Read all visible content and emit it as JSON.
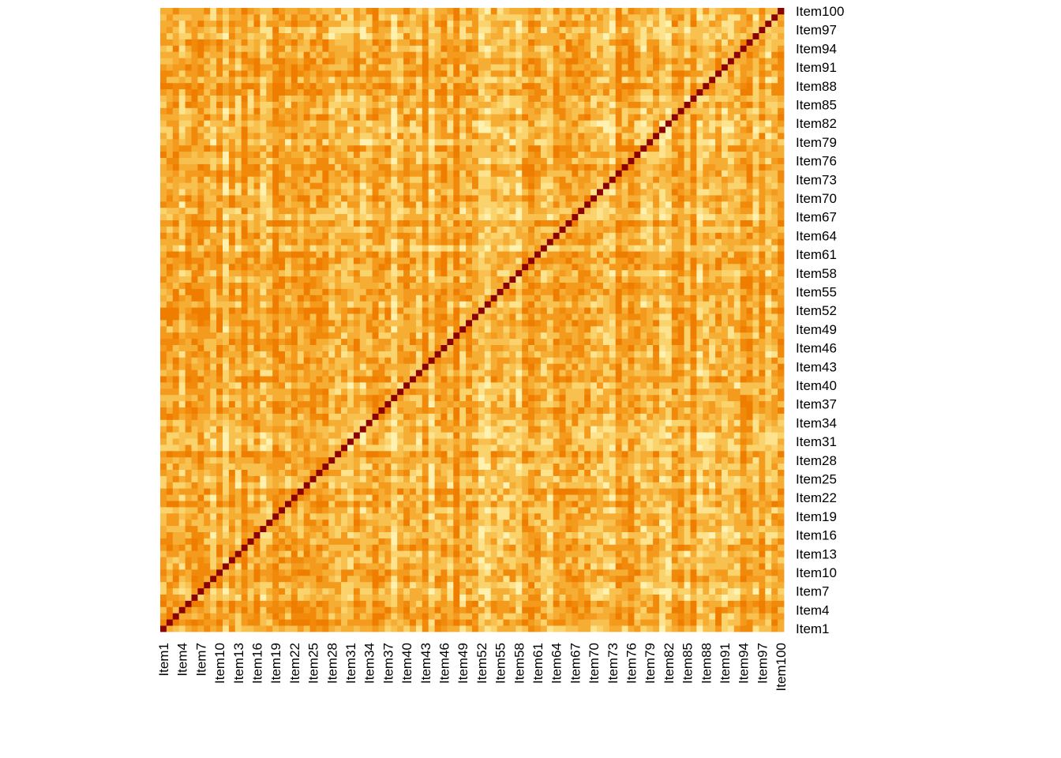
{
  "chart_data": {
    "type": "heatmap",
    "n_items": 100,
    "item_prefix": "Item",
    "x_tick_labels": [
      "Item1",
      "Item4",
      "Item7",
      "Item10",
      "Item13",
      "Item16",
      "Item19",
      "Item22",
      "Item25",
      "Item28",
      "Item31",
      "Item34",
      "Item37",
      "Item40",
      "Item43",
      "Item46",
      "Item49",
      "Item52",
      "Item55",
      "Item58",
      "Item61",
      "Item64",
      "Item67",
      "Item70",
      "Item73",
      "Item76",
      "Item79",
      "Item82",
      "Item85",
      "Item88",
      "Item91",
      "Item94",
      "Item97",
      "Item100"
    ],
    "y_tick_labels": [
      "Item1",
      "Item4",
      "Item7",
      "Item10",
      "Item13",
      "Item16",
      "Item19",
      "Item22",
      "Item25",
      "Item28",
      "Item31",
      "Item34",
      "Item37",
      "Item40",
      "Item43",
      "Item46",
      "Item49",
      "Item52",
      "Item55",
      "Item58",
      "Item61",
      "Item64",
      "Item67",
      "Item70",
      "Item73",
      "Item76",
      "Item79",
      "Item82",
      "Item85",
      "Item88",
      "Item91",
      "Item94",
      "Item97",
      "Item100"
    ],
    "diagonal_value": 1,
    "colors": {
      "diagonal": "#8b0000",
      "high": "#f07c00",
      "mid": "#f5a623",
      "low": "#fff2b0"
    },
    "legend": "none"
  }
}
